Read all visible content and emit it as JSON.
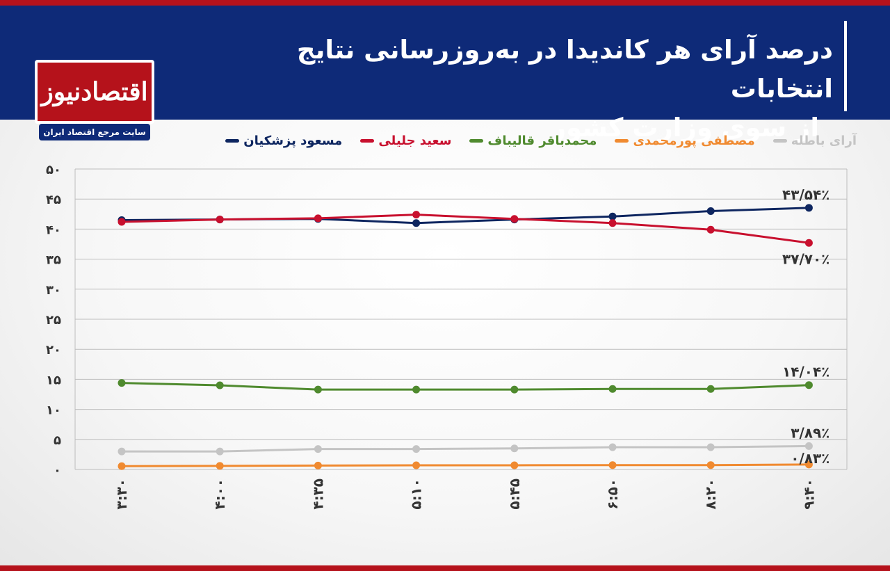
{
  "header": {
    "title_line1": "درصد آرای هر کاندیدا در به‌روزرسانی نتایج انتخابات",
    "title_line2": "از سوی وزارت کشور"
  },
  "logo": {
    "name": "اقتصادنیوز",
    "tagline": "سایت مرجع اقتصاد ایران"
  },
  "colors": {
    "header_bg": "#0e2a78",
    "accent_red": "#b5121b"
  },
  "chart_data": {
    "type": "line",
    "title": "درصد آرای هر کاندیدا در به‌روزرسانی نتایج انتخابات از سوی وزارت کشور",
    "xlabel": "",
    "ylabel": "",
    "ylim": [
      0,
      50
    ],
    "yticks": [
      0,
      5,
      10,
      15,
      20,
      25,
      30,
      35,
      40,
      45,
      50
    ],
    "ytick_labels": [
      "۰",
      "۵",
      "۱۰",
      "۱۵",
      "۲۰",
      "۲۵",
      "۳۰",
      "۳۵",
      "۴۰",
      "۴۵",
      "۵۰"
    ],
    "categories": [
      "۳:۳۰",
      "۴:۰۰",
      "۴:۳۵",
      "۵:۱۰",
      "۵:۴۵",
      "۶:۵۰",
      "۸:۲۰",
      "۹:۴۰"
    ],
    "grid": true,
    "legend_position": "top",
    "series": [
      {
        "name": "مسعود پزشکیان",
        "color": "#0e2660",
        "values": [
          41.5,
          41.6,
          41.7,
          41.0,
          41.6,
          42.1,
          43.0,
          43.54
        ],
        "end_label": "۴۳/۵۴٪",
        "label_pos": "above"
      },
      {
        "name": "سعید جلیلی",
        "color": "#c8102e",
        "values": [
          41.2,
          41.6,
          41.8,
          42.4,
          41.7,
          41.0,
          39.9,
          37.7
        ],
        "end_label": "۳۷/۷۰٪",
        "label_pos": "below"
      },
      {
        "name": "محمدباقر قالیباف",
        "color": "#4f8a2e",
        "values": [
          14.4,
          14.0,
          13.3,
          13.3,
          13.3,
          13.4,
          13.4,
          14.04
        ],
        "end_label": "۱۴/۰۴٪",
        "label_pos": "above"
      },
      {
        "name": "مصطفی پورمحمدی",
        "color": "#f08a30",
        "values": [
          0.55,
          0.6,
          0.65,
          0.7,
          0.7,
          0.72,
          0.73,
          0.83
        ],
        "end_label": "۰/۸۳٪",
        "label_pos": "right-below"
      },
      {
        "name": "آرای باطله",
        "color": "#c4c4c4",
        "values": [
          3.0,
          3.0,
          3.4,
          3.4,
          3.5,
          3.7,
          3.7,
          3.89
        ],
        "end_label": "۳/۸۹٪",
        "label_pos": "above"
      }
    ]
  }
}
